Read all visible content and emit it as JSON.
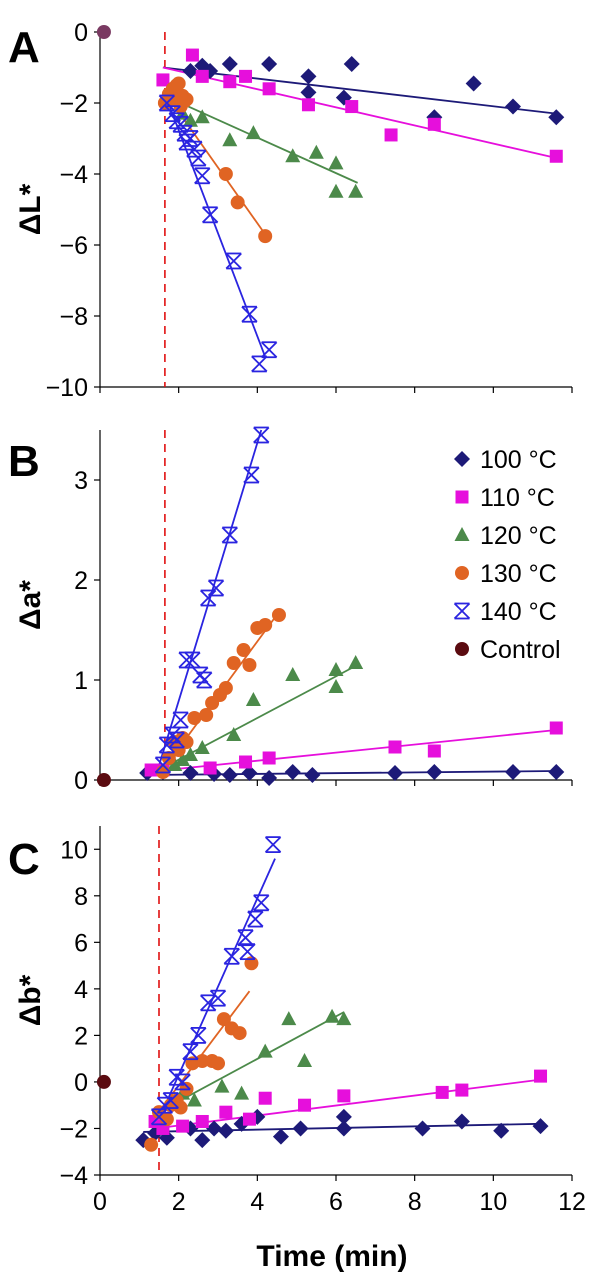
{
  "colors": {
    "100": "#1d1a78",
    "110": "#e60fdc",
    "120": "#4c8a4a",
    "130": "#e06423",
    "140": "#2a24e0",
    "control": "#5b0b10",
    "control_a": "#7a3a62",
    "dash": "#e01010"
  },
  "legend": {
    "placement": "top-right of panel B",
    "entries": [
      {
        "key": "100",
        "label": "100 °C",
        "marker": "diamond"
      },
      {
        "key": "110",
        "label": "110 °C",
        "marker": "square"
      },
      {
        "key": "120",
        "label": "120 °C",
        "marker": "triangle"
      },
      {
        "key": "130",
        "label": "130 °C",
        "marker": "circle"
      },
      {
        "key": "140",
        "label": "140 °C",
        "marker": "star"
      },
      {
        "key": "control",
        "label": "Control",
        "marker": "circle"
      }
    ]
  },
  "chart_data": [
    {
      "type": "scatter",
      "panel": "A",
      "ylabel": "ΔL*",
      "xlim": [
        0,
        12
      ],
      "ylim": [
        -10,
        0
      ],
      "yticks": [
        0,
        -2,
        -4,
        -6,
        -8,
        -10
      ],
      "dashed_vline_x": 1.65,
      "control": [
        [
          0.1,
          0
        ]
      ],
      "series": [
        {
          "key": "100",
          "points": [
            [
              2.3,
              -1.1
            ],
            [
              2.6,
              -0.95
            ],
            [
              2.8,
              -1.1
            ],
            [
              3.3,
              -0.9
            ],
            [
              4.3,
              -0.9
            ],
            [
              5.3,
              -1.25
            ],
            [
              5.3,
              -1.7
            ],
            [
              6.2,
              -1.85
            ],
            [
              6.4,
              -0.9
            ],
            [
              8.5,
              -2.4
            ],
            [
              9.5,
              -1.45
            ],
            [
              10.5,
              -2.1
            ],
            [
              11.6,
              -2.4
            ]
          ],
          "fit": [
            [
              1.6,
              -1.0
            ],
            [
              11.6,
              -2.3
            ]
          ]
        },
        {
          "key": "110",
          "points": [
            [
              1.6,
              -1.35
            ],
            [
              2.35,
              -0.65
            ],
            [
              2.6,
              -1.25
            ],
            [
              3.3,
              -1.4
            ],
            [
              3.7,
              -1.25
            ],
            [
              4.3,
              -1.6
            ],
            [
              5.3,
              -2.05
            ],
            [
              6.4,
              -2.1
            ],
            [
              7.4,
              -2.9
            ],
            [
              8.5,
              -2.6
            ],
            [
              11.6,
              -3.5
            ]
          ],
          "fit": [
            [
              1.6,
              -1.0
            ],
            [
              11.6,
              -3.55
            ]
          ]
        },
        {
          "key": "120",
          "points": [
            [
              1.8,
              -1.85
            ],
            [
              2.1,
              -2.3
            ],
            [
              2.3,
              -2.5
            ],
            [
              2.6,
              -2.4
            ],
            [
              3.3,
              -3.05
            ],
            [
              3.9,
              -2.85
            ],
            [
              4.9,
              -3.5
            ],
            [
              5.5,
              -3.4
            ],
            [
              6.0,
              -3.7
            ],
            [
              6.0,
              -4.5
            ],
            [
              6.5,
              -4.5
            ]
          ],
          "fit": [
            [
              1.65,
              -1.8
            ],
            [
              6.55,
              -4.25
            ]
          ]
        },
        {
          "key": "130",
          "points": [
            [
              1.65,
              -2.0
            ],
            [
              1.75,
              -1.75
            ],
            [
              1.85,
              -1.6
            ],
            [
              1.9,
              -1.9
            ],
            [
              1.95,
              -1.5
            ],
            [
              2.0,
              -1.45
            ],
            [
              2.05,
              -2.1
            ],
            [
              2.1,
              -1.8
            ],
            [
              2.15,
              -1.95
            ],
            [
              2.2,
              -1.9
            ],
            [
              3.2,
              -4.0
            ],
            [
              3.5,
              -4.8
            ],
            [
              4.2,
              -5.75
            ]
          ],
          "fit": [
            [
              1.65,
              -1.7
            ],
            [
              4.2,
              -5.7
            ]
          ]
        },
        {
          "key": "140",
          "points": [
            [
              1.7,
              -2.0
            ],
            [
              1.85,
              -2.3
            ],
            [
              1.95,
              -2.5
            ],
            [
              2.05,
              -2.6
            ],
            [
              2.15,
              -2.85
            ],
            [
              2.2,
              -3.1
            ],
            [
              2.3,
              -3.0
            ],
            [
              2.4,
              -3.3
            ],
            [
              2.5,
              -3.55
            ],
            [
              2.6,
              -4.05
            ],
            [
              2.8,
              -5.15
            ],
            [
              3.4,
              -6.45
            ],
            [
              3.8,
              -7.95
            ],
            [
              4.05,
              -9.35
            ],
            [
              4.3,
              -8.95
            ]
          ],
          "fit": [
            [
              1.65,
              -1.75
            ],
            [
              4.2,
              -9.15
            ]
          ]
        }
      ]
    },
    {
      "type": "scatter",
      "panel": "B",
      "ylabel": "Δa*",
      "xlim": [
        0,
        12
      ],
      "ylim": [
        0,
        3.5
      ],
      "yticks": [
        0,
        1,
        2,
        3
      ],
      "dashed_vline_x": 1.65,
      "control": [
        [
          0.1,
          0
        ]
      ],
      "series": [
        {
          "key": "100",
          "points": [
            [
              1.2,
              0.07
            ],
            [
              1.6,
              0.08
            ],
            [
              2.3,
              0.07
            ],
            [
              2.9,
              0.06
            ],
            [
              3.3,
              0.05
            ],
            [
              3.8,
              0.07
            ],
            [
              4.3,
              0.02
            ],
            [
              4.9,
              0.08
            ],
            [
              5.4,
              0.05
            ],
            [
              7.5,
              0.07
            ],
            [
              8.5,
              0.08
            ],
            [
              10.5,
              0.08
            ],
            [
              11.6,
              0.08
            ]
          ],
          "fit": [
            [
              1.2,
              0.05
            ],
            [
              11.6,
              0.09
            ]
          ]
        },
        {
          "key": "110",
          "points": [
            [
              1.3,
              0.1
            ],
            [
              1.6,
              0.1
            ],
            [
              2.8,
              0.12
            ],
            [
              3.7,
              0.18
            ],
            [
              4.3,
              0.22
            ],
            [
              7.5,
              0.33
            ],
            [
              8.5,
              0.29
            ],
            [
              11.6,
              0.52
            ]
          ],
          "fit": [
            [
              1.2,
              0.08
            ],
            [
              11.6,
              0.5
            ]
          ]
        },
        {
          "key": "120",
          "points": [
            [
              1.9,
              0.15
            ],
            [
              2.1,
              0.2
            ],
            [
              2.3,
              0.25
            ],
            [
              2.6,
              0.32
            ],
            [
              3.4,
              0.45
            ],
            [
              3.9,
              0.8
            ],
            [
              4.9,
              1.05
            ],
            [
              6.0,
              1.1
            ],
            [
              6.0,
              0.93
            ],
            [
              6.5,
              1.17
            ]
          ],
          "fit": [
            [
              1.6,
              0.12
            ],
            [
              6.4,
              1.12
            ]
          ]
        },
        {
          "key": "130",
          "points": [
            [
              1.6,
              0.08
            ],
            [
              1.75,
              0.22
            ],
            [
              1.9,
              0.38
            ],
            [
              2.0,
              0.3
            ],
            [
              2.1,
              0.42
            ],
            [
              2.2,
              0.38
            ],
            [
              2.4,
              0.62
            ],
            [
              2.7,
              0.65
            ],
            [
              2.85,
              0.77
            ],
            [
              3.05,
              0.85
            ],
            [
              3.2,
              0.92
            ],
            [
              3.4,
              1.17
            ],
            [
              3.65,
              1.3
            ],
            [
              3.8,
              1.15
            ],
            [
              4.0,
              1.52
            ],
            [
              4.2,
              1.55
            ],
            [
              4.55,
              1.65
            ]
          ],
          "fit": [
            [
              1.6,
              0.1
            ],
            [
              4.55,
              1.68
            ]
          ]
        },
        {
          "key": "140",
          "points": [
            [
              1.6,
              0.15
            ],
            [
              1.7,
              0.35
            ],
            [
              1.85,
              0.45
            ],
            [
              1.95,
              0.4
            ],
            [
              2.05,
              0.6
            ],
            [
              2.2,
              1.2
            ],
            [
              2.35,
              1.2
            ],
            [
              2.55,
              1.05
            ],
            [
              2.65,
              1.0
            ],
            [
              2.75,
              1.82
            ],
            [
              2.95,
              1.92
            ],
            [
              3.3,
              2.45
            ],
            [
              3.85,
              3.05
            ],
            [
              4.1,
              3.45
            ]
          ],
          "fit": [
            [
              1.45,
              0.08
            ],
            [
              4.1,
              3.5
            ]
          ]
        }
      ]
    },
    {
      "type": "scatter",
      "panel": "C",
      "ylabel": "Δb*",
      "xlabel": "Time (min)",
      "xlim": [
        0,
        12
      ],
      "ylim": [
        -4,
        11
      ],
      "xticks": [
        0,
        2,
        4,
        6,
        8,
        10,
        12
      ],
      "yticks": [
        10,
        8,
        6,
        4,
        2,
        0,
        -2,
        -4
      ],
      "dashed_vline_x": 1.5,
      "control": [
        [
          0.1,
          0
        ]
      ],
      "series": [
        {
          "key": "100",
          "points": [
            [
              1.1,
              -2.5
            ],
            [
              1.4,
              -2.2
            ],
            [
              1.7,
              -2.4
            ],
            [
              2.3,
              -2.0
            ],
            [
              2.6,
              -2.5
            ],
            [
              2.9,
              -2.0
            ],
            [
              3.2,
              -2.1
            ],
            [
              3.6,
              -1.8
            ],
            [
              4.0,
              -1.5
            ],
            [
              4.6,
              -2.35
            ],
            [
              5.1,
              -2.0
            ],
            [
              6.2,
              -1.5
            ],
            [
              6.2,
              -2.0
            ],
            [
              8.2,
              -2.0
            ],
            [
              9.2,
              -1.7
            ],
            [
              10.2,
              -2.1
            ],
            [
              11.2,
              -1.9
            ]
          ],
          "fit": [
            [
              1.1,
              -2.15
            ],
            [
              11.2,
              -1.8
            ]
          ]
        },
        {
          "key": "110",
          "points": [
            [
              1.4,
              -1.7
            ],
            [
              1.6,
              -2.0
            ],
            [
              2.1,
              -1.9
            ],
            [
              2.6,
              -1.7
            ],
            [
              3.2,
              -1.3
            ],
            [
              3.8,
              -1.6
            ],
            [
              4.2,
              -0.7
            ],
            [
              5.2,
              -1.0
            ],
            [
              6.2,
              -0.6
            ],
            [
              8.7,
              -0.45
            ],
            [
              9.2,
              -0.35
            ],
            [
              11.2,
              0.25
            ]
          ],
          "fit": [
            [
              1.4,
              -2.0
            ],
            [
              11.2,
              0.1
            ]
          ]
        },
        {
          "key": "120",
          "points": [
            [
              1.9,
              -0.8
            ],
            [
              2.1,
              -0.5
            ],
            [
              2.4,
              -0.8
            ],
            [
              3.1,
              -0.2
            ],
            [
              3.6,
              -0.5
            ],
            [
              4.2,
              1.3
            ],
            [
              4.8,
              2.7
            ],
            [
              5.2,
              0.9
            ],
            [
              5.9,
              2.8
            ],
            [
              6.2,
              2.7
            ]
          ],
          "fit": [
            [
              1.6,
              -1.2
            ],
            [
              6.2,
              3.0
            ]
          ]
        },
        {
          "key": "130",
          "points": [
            [
              1.3,
              -2.7
            ],
            [
              1.5,
              -1.3
            ],
            [
              1.7,
              -1.6
            ],
            [
              1.8,
              -1.0
            ],
            [
              1.95,
              -0.8
            ],
            [
              2.05,
              -1.1
            ],
            [
              2.2,
              -0.3
            ],
            [
              2.35,
              0.8
            ],
            [
              2.6,
              0.9
            ],
            [
              2.85,
              0.9
            ],
            [
              3.0,
              0.8
            ],
            [
              3.15,
              2.7
            ],
            [
              3.35,
              2.3
            ],
            [
              3.55,
              2.1
            ],
            [
              3.85,
              5.1
            ]
          ],
          "fit": [
            [
              1.4,
              -1.5
            ],
            [
              3.8,
              3.9
            ]
          ]
        },
        {
          "key": "140",
          "points": [
            [
              1.5,
              -1.5
            ],
            [
              1.65,
              -1.0
            ],
            [
              1.8,
              -0.8
            ],
            [
              1.95,
              0.2
            ],
            [
              2.1,
              0.0
            ],
            [
              2.3,
              1.3
            ],
            [
              2.5,
              2.0
            ],
            [
              2.75,
              3.4
            ],
            [
              3.0,
              3.6
            ],
            [
              3.35,
              5.4
            ],
            [
              3.7,
              6.2
            ],
            [
              3.75,
              5.6
            ],
            [
              3.95,
              7.0
            ],
            [
              4.1,
              7.7
            ],
            [
              4.4,
              10.2
            ]
          ],
          "fit": [
            [
              1.5,
              -1.6
            ],
            [
              4.45,
              9.6
            ]
          ]
        }
      ]
    }
  ]
}
